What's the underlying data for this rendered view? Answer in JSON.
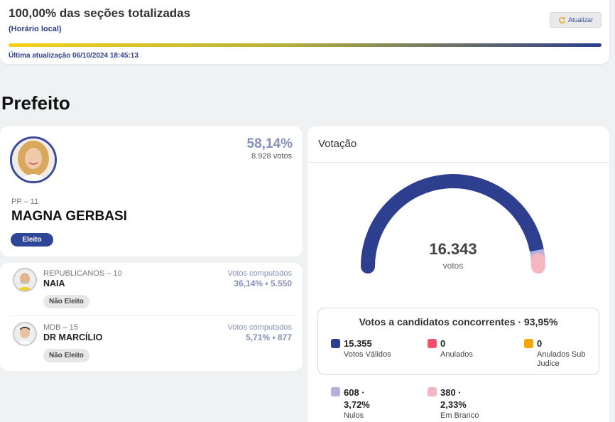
{
  "status": {
    "title": "100,00% das seções totalizadas",
    "timezone_note": "(Horário local)",
    "refresh_label": "Atualizar",
    "last_update": "Última atualização 06/10/2024 18:45:13",
    "progress_fraction": 1.0,
    "gradient_colors": [
      "#f5d117",
      "#b9b23a",
      "#2b3e8c"
    ]
  },
  "section": {
    "title": "Prefeito"
  },
  "winner": {
    "percent": "58,14%",
    "votes": "8.928 votos",
    "party": "PP – 11",
    "name": "MAGNA GERBASI",
    "status": "Eleito"
  },
  "candidates": [
    {
      "party": "REPUBLICANOS – 10",
      "name": "NAIA",
      "votes_label": "Votos computados",
      "stats": "36,14%  •  5.550",
      "status": "Não Eleito"
    },
    {
      "party": "MDB – 15",
      "name": "DR MARCÍLIO",
      "votes_label": "Votos computados",
      "stats": "5,71%  •  877",
      "status": "Não Eleito"
    }
  ],
  "voting": {
    "title": "Votação",
    "total": "16.343",
    "total_label": "votos",
    "concorrentes_title": "Votos a candidatos concorrentes · 93,95%",
    "legend": [
      {
        "value": "15.355",
        "label": "Votos Válidos",
        "color": "#2f3f8f"
      },
      {
        "value": "0",
        "label": "Anulados",
        "color": "#f0506e"
      },
      {
        "value": "0",
        "label": "Anulados Sub Judice",
        "color": "#f5a500"
      },
      {
        "value": "608 · 3,72%",
        "label": "Nulos",
        "color": "#b3b1de"
      },
      {
        "value": "380 · 2,33%",
        "label": "Em Branco",
        "color": "#f6b6c1"
      }
    ],
    "gauge_segments": [
      {
        "name": "Votos Válidos",
        "value": 15355,
        "color": "#2f3f8f"
      },
      {
        "name": "Nulos",
        "value": 608,
        "color": "#b3b1de"
      },
      {
        "name": "Em Branco",
        "value": 380,
        "color": "#f6b6c1"
      }
    ]
  }
}
